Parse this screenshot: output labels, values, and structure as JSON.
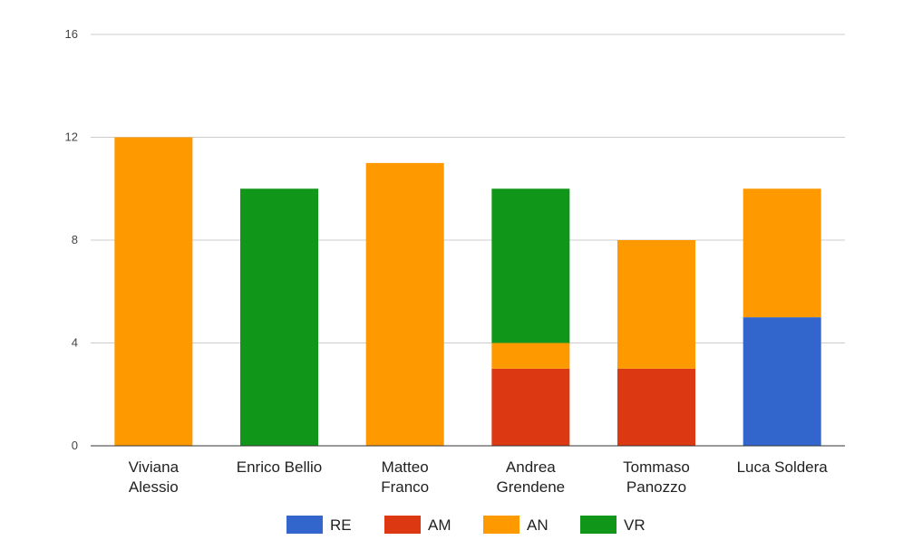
{
  "chart_data": {
    "type": "bar",
    "stacked": true,
    "categories": [
      [
        "Viviana",
        "Alessio"
      ],
      [
        "Enrico Bellio"
      ],
      [
        "Matteo",
        "Franco"
      ],
      [
        "Andrea",
        "Grendene"
      ],
      [
        "Tommaso",
        "Panozzo"
      ],
      [
        "Luca Soldera"
      ]
    ],
    "series": [
      {
        "name": "RE",
        "color": "#3366cc",
        "values": [
          0,
          0,
          0,
          0,
          0,
          5
        ]
      },
      {
        "name": "AM",
        "color": "#dc3912",
        "values": [
          0,
          0,
          0,
          3,
          3,
          0
        ]
      },
      {
        "name": "AN",
        "color": "#ff9900",
        "values": [
          12,
          0,
          11,
          1,
          5,
          5
        ]
      },
      {
        "name": "VR",
        "color": "#109618",
        "values": [
          0,
          10,
          0,
          6,
          0,
          0
        ]
      }
    ],
    "ylim": [
      0,
      16
    ],
    "yticks": [
      0,
      4,
      8,
      12,
      16
    ],
    "grid": true,
    "legend_position": "bottom"
  }
}
